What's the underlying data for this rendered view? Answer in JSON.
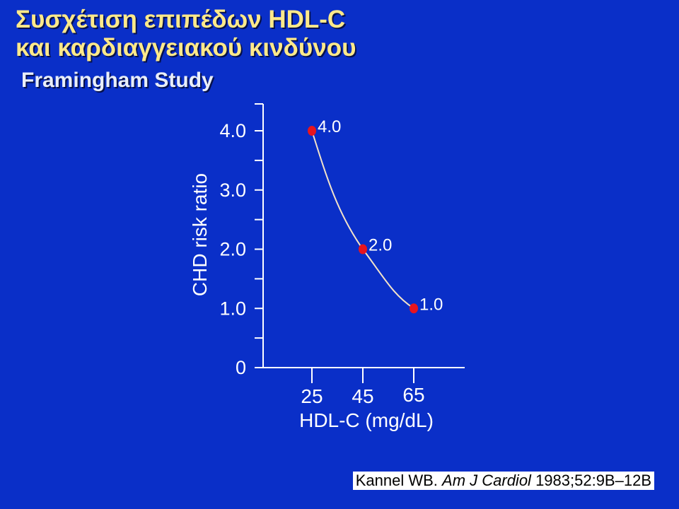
{
  "slide": {
    "title_line1": "Συσχέτιση επιπέδων HDL-C",
    "title_line2": "και καρδιαγγειακού κινδύνου",
    "subtitle": "Framingham Study"
  },
  "citation": {
    "author": "Kannel WB.",
    "journal": "Am J Cardiol",
    "ref": "1983;52:9B–12B"
  },
  "colors": {
    "background": "#0a2fc8",
    "title": "#ffe98a",
    "text": "#ffffff",
    "point": "#e8141e",
    "curve": "#f3e3c9"
  },
  "chart_data": {
    "type": "line",
    "xlabel": "HDL-C (mg/dL)",
    "ylabel": "CHD risk ratio",
    "x_ticks": [
      "25",
      "45",
      "65"
    ],
    "y_ticks": [
      "0",
      "1.0",
      "2.0",
      "3.0",
      "4.0"
    ],
    "ylim": [
      0,
      4.0
    ],
    "xlim": [
      5,
      85
    ],
    "x": [
      25,
      45,
      65
    ],
    "y": [
      4.0,
      2.0,
      1.0
    ],
    "point_labels": [
      "4.0",
      "2.0",
      "1.0"
    ],
    "grid": false
  }
}
